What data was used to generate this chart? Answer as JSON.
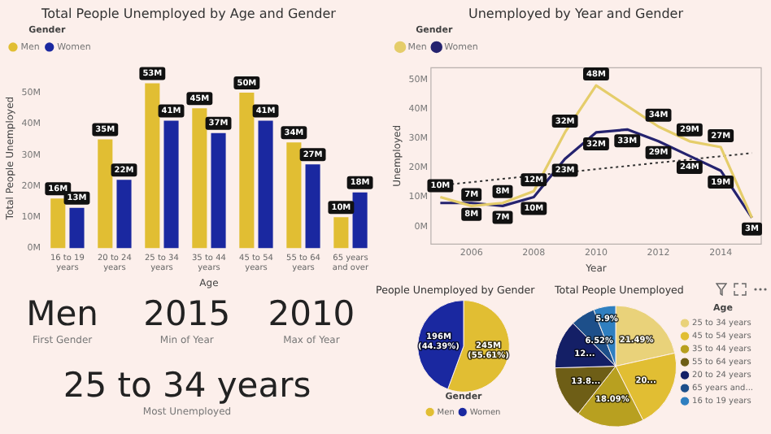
{
  "chart_data": [
    {
      "type": "bar",
      "title": "Total People Unemployed by Age and Gender",
      "xlabel": "Age",
      "ylabel": "Total People Unemployed",
      "legend_title": "Gender",
      "legend": "top left",
      "categories": [
        "16 to 19 years",
        "20 to 24 years",
        "25 to 34 years",
        "35 to 44 years",
        "45 to 54 years",
        "55 to 64 years",
        "65 years and over"
      ],
      "series": [
        {
          "name": "Men",
          "color": "#e1be33",
          "values": [
            16,
            35,
            53,
            45,
            50,
            34,
            10
          ],
          "value_labels": [
            "16M",
            "35M",
            "53M",
            "45M",
            "50M",
            "34M",
            "10M"
          ]
        },
        {
          "name": "Women",
          "color": "#1a28a0",
          "values": [
            13,
            22,
            41,
            37,
            41,
            27,
            18
          ],
          "value_labels": [
            "13M",
            "22M",
            "41M",
            "37M",
            "41M",
            "27M",
            "18M"
          ]
        }
      ],
      "ylim": [
        0,
        58
      ],
      "yticks": [
        {
          "value": 0,
          "label": "0M"
        },
        {
          "value": 10,
          "label": "10M"
        },
        {
          "value": 20,
          "label": "20M"
        },
        {
          "value": 30,
          "label": "30M"
        },
        {
          "value": 40,
          "label": "40M"
        },
        {
          "value": 50,
          "label": "50M"
        }
      ]
    },
    {
      "type": "line",
      "title": "Unemployed by Year and Gender",
      "xlabel": "Year",
      "ylabel": "Unemployed",
      "legend_title": "Gender",
      "legend": "top left",
      "x": [
        2005,
        2006,
        2007,
        2008,
        2009,
        2010,
        2011,
        2012,
        2013,
        2014,
        2015
      ],
      "series": [
        {
          "name": "Men",
          "color": "#e5cd6a",
          "values": [
            10,
            7,
            8,
            12,
            32,
            48,
            41,
            34,
            29,
            27,
            3
          ],
          "value_labels": [
            "10M",
            "7M",
            "8M",
            "12M",
            "32M",
            "48M",
            null,
            "34M",
            "29M",
            "27M",
            null
          ]
        },
        {
          "name": "Women",
          "color": "#25236f",
          "values": [
            8,
            8,
            7,
            10,
            23,
            32,
            33,
            29,
            24,
            19,
            3
          ],
          "value_labels": [
            null,
            "8M",
            "7M",
            "10M",
            "23M",
            "32M",
            "33M",
            "29M",
            "24M",
            "19M",
            "3M"
          ]
        },
        {
          "type": "line",
          "x": [
            2005,
            2015
          ],
          "values": [
            14,
            25
          ],
          "color": "#333333",
          "line_style": "dotted"
        }
      ],
      "xlim": [
        2004.7,
        2015.3
      ],
      "xticks": [
        2006,
        2008,
        2010,
        2012,
        2014
      ],
      "ylim": [
        -6,
        54
      ],
      "yticks": [
        {
          "value": 0,
          "label": "0M"
        },
        {
          "value": 10,
          "label": "10M"
        },
        {
          "value": 20,
          "label": "20M"
        },
        {
          "value": 30,
          "label": "30M"
        },
        {
          "value": 40,
          "label": "40M"
        },
        {
          "value": 50,
          "label": "50M"
        }
      ]
    },
    {
      "type": "other",
      "annotations": [
        "Men",
        "First Gender",
        "2015",
        "Min of Year",
        "2010",
        "Max of Year",
        "25 to 34 years",
        "Most Unemployed"
      ]
    },
    {
      "type": "pie",
      "title": "People Unemployed by Gender",
      "legend_title": "Gender",
      "legend": "bottom",
      "categories": [
        "Men",
        "Women"
      ],
      "values": [
        55.61,
        44.39
      ],
      "colors": [
        "#e1be33",
        "#1a28a0"
      ],
      "value_labels": [
        "245M (55.61%)",
        "196M (44.39%)"
      ]
    },
    {
      "type": "pie",
      "title": "Total People Unemployed",
      "legend_title": "Age",
      "legend": "right",
      "categories": [
        "25 to 34 years",
        "45 to 54 years",
        "35 to 44 years",
        "55 to 64 years",
        "20 to 24 years",
        "65 years and...",
        "16 to 19 years"
      ],
      "values": [
        21.49,
        20.99,
        18.09,
        13.89,
        12.99,
        6.52,
        5.9
      ],
      "colors": [
        "#e9d27a",
        "#e1be33",
        "#b8a020",
        "#6e5e16",
        "#141f66",
        "#1d4f8a",
        "#2f7fc0"
      ],
      "value_labels": [
        "21.49%",
        "20...",
        "18.09%",
        "13.8...",
        "12...",
        "6.52%",
        "5.9%"
      ]
    }
  ]
}
